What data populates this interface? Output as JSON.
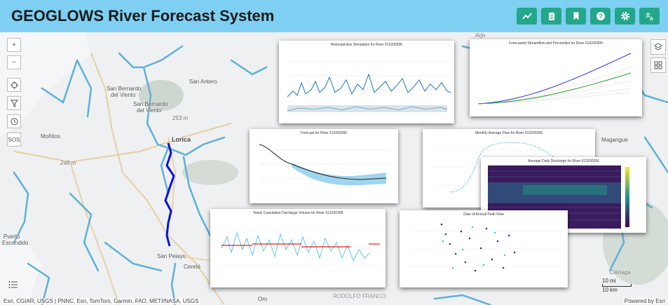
{
  "app": {
    "title": "GEOGLOWS River Forecast System"
  },
  "toolbar": [
    {
      "name": "chart-button",
      "icon": "trend-line-icon"
    },
    {
      "name": "clipboard-button",
      "icon": "clipboard-icon"
    },
    {
      "name": "bookmark-button",
      "icon": "bookmark-icon"
    },
    {
      "name": "help-button",
      "icon": "question-icon"
    },
    {
      "name": "settings-button",
      "icon": "gear-icon"
    },
    {
      "name": "language-button",
      "icon": "translate-icon"
    }
  ],
  "map_controls": {
    "zoom_in": "+",
    "zoom_out": "−",
    "sos": "SOS"
  },
  "map_labels": {
    "san_antero": "San Antero",
    "san_bernardo_1": "San Bernardo",
    "san_bernardo_2": "del Viento",
    "san_bernardo_b1": "San Bernardo",
    "san_bernardo_b2": "del Viento",
    "lorica": "Lorica",
    "monitos": "Moñitos",
    "puerto_escondido_1": "Puerto",
    "puerto_escondido_2": "Escondido",
    "san_pelayo": "San Pelayo",
    "cerete": "Cereté",
    "magangue": "Magangue",
    "arjona": "Arjo",
    "cienaga": "Ciénaga",
    "elev_253": "253 m",
    "elev_248": "248 m",
    "rodolfo": "RODOLFO FRANCO",
    "oro": "Oro"
  },
  "attribution": "Esri, CGIAR, USGS | PNNC, Esri, TomTom, Garmin, FAO, METI/NASA, USGS",
  "powered_by": "Powered by Esri",
  "scale": {
    "top": "10 mi",
    "bottom": "10 km"
  },
  "panels": {
    "p1": {
      "title": "Retrospective Simulation for River 613200306"
    },
    "p2": {
      "title": "Forecasted Streamflow and Percentiles for River 613200306"
    },
    "p3": {
      "title": "Forecast for River 613200306"
    },
    "p4": {
      "title": "Monthly Average Flow for River 613200306"
    },
    "p5": {
      "title": "Average Daily Discharge for River 613200306"
    },
    "p6": {
      "title": "Yearly Cumulative Discharge Volume for River 613200306"
    },
    "p7": {
      "title": "Date of Annual Peak Flow"
    }
  },
  "colors": {
    "header": "#7ecff2",
    "button": "#23a78a",
    "river": "#5fb0d6",
    "selected_river": "#0a12d6"
  }
}
